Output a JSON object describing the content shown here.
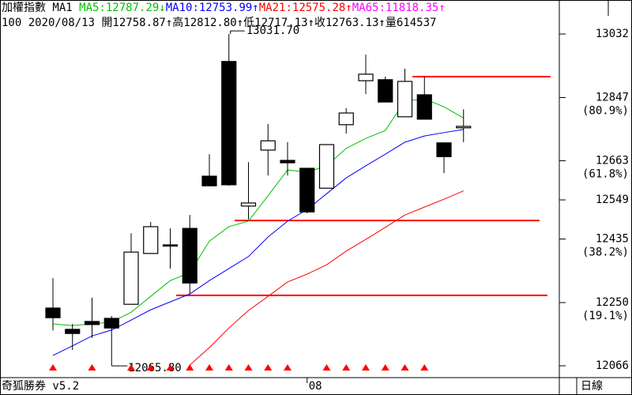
{
  "chart_data": {
    "type": "candlestick",
    "header": [
      {
        "text": "加權指數 MA1 ",
        "color": "#000000"
      },
      {
        "text": "MA5:12787.29↓",
        "color": "#00c000"
      },
      {
        "text": "MA10:12753.99↑",
        "color": "#0000ff"
      },
      {
        "text": "MA21:12575.28↑",
        "color": "#ff0000"
      },
      {
        "text": "MA65:11818.35↑",
        "color": "#ff00ff"
      }
    ],
    "info": "100 2020/08/13 開12758.87↑高12812.80↑低12717.13↑收12763.13↑量614537",
    "categories": [
      null,
      null,
      null,
      null,
      null,
      null,
      null,
      null,
      null,
      null,
      null,
      null,
      null,
      "08",
      null,
      null,
      null,
      null,
      null,
      null,
      null,
      null
    ],
    "open": [
      12234,
      12172,
      12195,
      12204,
      12245,
      12393,
      12418,
      12466,
      12618,
      12952,
      12531,
      12694,
      12664,
      12641,
      12583,
      12768,
      12896,
      12899,
      12791,
      12855,
      12715,
      12758.87
    ],
    "high": [
      12321,
      12188,
      12264,
      12211,
      12452,
      12485,
      12466,
      12505,
      12682,
      13031.7,
      12659,
      12770,
      12717,
      12641,
      12710,
      12816,
      12972,
      12908,
      12931,
      12908,
      12715,
      12812.8
    ],
    "low": [
      12169,
      12112,
      12147,
      12065.8,
      12245,
      12393,
      12349,
      12275,
      12590,
      12590,
      12492,
      12620,
      12620,
      12510,
      12583,
      12742,
      12857,
      12834,
      12791,
      12784,
      12627,
      12717.13
    ],
    "close": [
      12206,
      12160,
      12186,
      12176,
      12397,
      12471,
      12416,
      12307,
      12590,
      12593,
      12540,
      12721,
      12657,
      12514,
      12710,
      12802,
      12915,
      12834,
      12894,
      12784,
      12675,
      12763.13
    ],
    "series": [
      {
        "name": "MA5",
        "color": "#00c000",
        "values": [
          12188,
          12183,
          12188,
          12193,
          12222,
          12268,
          12314,
          12337,
          12429,
          12471,
          12487,
          12561,
          12636,
          12630,
          12648,
          12699,
          12728,
          12751,
          12837,
          12843,
          12820,
          12787.29
        ]
      },
      {
        "name": "MA10",
        "color": "#0000ff",
        "values": [
          12096,
          12124,
          12153,
          12170,
          12199,
          12229,
          12252,
          12275,
          12314,
          12349,
          12384,
          12441,
          12487,
          12521,
          12567,
          12613,
          12648,
          12682,
          12717,
          12735,
          12745,
          12753.99
        ]
      },
      {
        "name": "MA21",
        "color": "#ff0000",
        "values": [
          null,
          null,
          null,
          null,
          null,
          null,
          null,
          12068,
          12119,
          12176,
          12227,
          12268,
          12310,
          12333,
          12360,
          12400,
          12434,
          12469,
          12505,
          12528,
          12551,
          12575.28
        ]
      }
    ],
    "high_label": {
      "value": 13031.7,
      "label": "13031.70"
    },
    "low_label": {
      "value": 12065.8,
      "label": "12065.80"
    },
    "levels": [
      12908,
      12489,
      12271
    ],
    "level_color": "#ff0000",
    "signals": [
      true,
      false,
      true,
      false,
      true,
      true,
      true,
      true,
      true,
      true,
      true,
      true,
      true,
      false,
      true,
      true,
      true,
      true,
      true,
      true,
      false,
      false
    ],
    "signal_color": "#ff0000",
    "ylim": [
      12031.5,
      13085
    ],
    "yticks": [
      13032,
      12847,
      12663,
      12549,
      12435,
      12250,
      12066
    ],
    "ratio_labels": [
      {
        "value": 12847,
        "label": "(80.9%)"
      },
      {
        "value": 12663,
        "label": "(61.8%)"
      },
      {
        "value": 12435,
        "label": "(38.2%)"
      },
      {
        "value": 12250,
        "label": "(19.1%)"
      }
    ],
    "software": "奇狐勝券 v5.2",
    "period": "日線"
  }
}
